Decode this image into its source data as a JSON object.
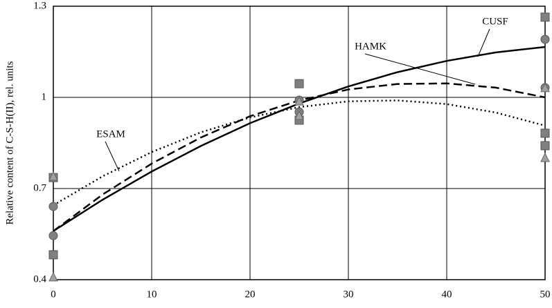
{
  "chart_data": {
    "type": "scatter",
    "ylabel": "Relative content of C-S-H(II), rel. units",
    "xlim": [
      0,
      50
    ],
    "ylim": [
      0.4,
      1.3
    ],
    "xticks": [
      0,
      10,
      20,
      30,
      40,
      50
    ],
    "yticks": [
      0.4,
      0.7,
      1,
      1.3
    ],
    "grid": true,
    "series": [
      {
        "marker": "square",
        "color": "#808080",
        "x": [
          0,
          0,
          25,
          25,
          50,
          50,
          50
        ],
        "values": [
          0.482,
          0.736,
          1.045,
          0.925,
          1.264,
          0.882,
          0.841
        ]
      },
      {
        "marker": "circle",
        "color": "#808080",
        "x": [
          0,
          0,
          25,
          25,
          50,
          50
        ],
        "values": [
          0.641,
          0.545,
          0.991,
          0.952,
          1.191,
          1.032
        ]
      },
      {
        "marker": "triangle",
        "color": "#a0a0a0",
        "x": [
          0,
          0,
          25,
          25,
          50,
          50
        ],
        "values": [
          0.739,
          0.407,
          0.986,
          0.939,
          1.03,
          0.8
        ]
      }
    ],
    "curves": [
      {
        "name": "CUSF",
        "style": "solid",
        "color": "#000000",
        "x": [
          0,
          5,
          10,
          15,
          20,
          25,
          30,
          35,
          40,
          45,
          50
        ],
        "values": [
          0.56,
          0.663,
          0.756,
          0.84,
          0.915,
          0.98,
          1.036,
          1.083,
          1.12,
          1.148,
          1.166
        ]
      },
      {
        "name": "HAMK",
        "style": "dashed",
        "color": "#000000",
        "x": [
          0,
          5,
          10,
          15,
          20,
          25,
          30,
          35,
          40,
          45,
          50
        ],
        "values": [
          0.56,
          0.68,
          0.782,
          0.868,
          0.938,
          0.99,
          1.026,
          1.044,
          1.046,
          1.032,
          1.0
        ]
      },
      {
        "name": "ESAM",
        "style": "dotted",
        "color": "#000000",
        "x": [
          0,
          5,
          10,
          15,
          20,
          25,
          30,
          35,
          40,
          45,
          50
        ],
        "values": [
          0.645,
          0.74,
          0.82,
          0.885,
          0.934,
          0.968,
          0.987,
          0.99,
          0.978,
          0.95,
          0.907
        ]
      }
    ]
  }
}
